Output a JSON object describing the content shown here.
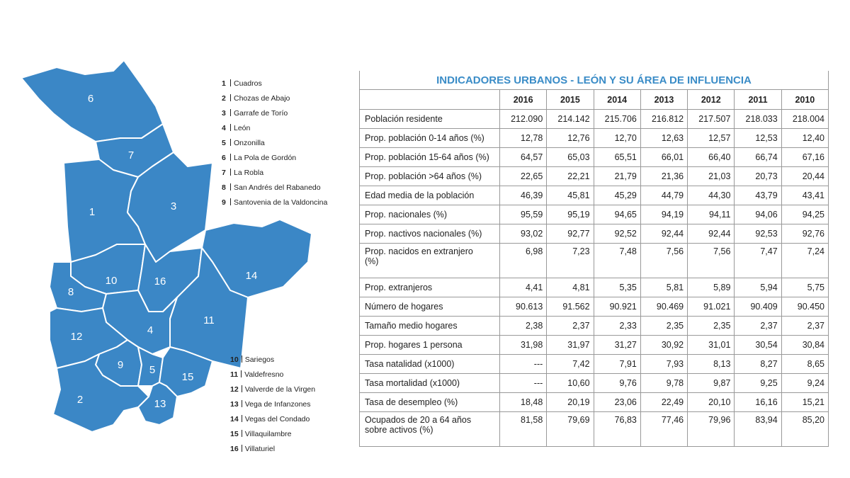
{
  "map": {
    "regions": [
      {
        "id": "1",
        "name": "Cuadros"
      },
      {
        "id": "2",
        "name": "Chozas de Abajo"
      },
      {
        "id": "3",
        "name": "Garrafe de Torío"
      },
      {
        "id": "4",
        "name": "León"
      },
      {
        "id": "5",
        "name": "Onzonilla"
      },
      {
        "id": "6",
        "name": "La Pola de Gordón"
      },
      {
        "id": "7",
        "name": "La Robla"
      },
      {
        "id": "8",
        "name": "San Andrés del Rabanedo"
      },
      {
        "id": "9",
        "name": "Santovenia de la Valdoncina"
      },
      {
        "id": "10",
        "name": "Sariegos"
      },
      {
        "id": "11",
        "name": "Valdefresno"
      },
      {
        "id": "12",
        "name": "Valverde de la Virgen"
      },
      {
        "id": "13",
        "name": "Vega de Infanzones"
      },
      {
        "id": "14",
        "name": "Vegas del Condado"
      },
      {
        "id": "15",
        "name": "Villaquilambre"
      },
      {
        "id": "16",
        "name": "Villaturiel"
      }
    ]
  },
  "table": {
    "title": "INDICADORES URBANOS - LEÓN Y SU ÁREA DE INFLUENCIA",
    "columns": [
      "2016",
      "2015",
      "2014",
      "2013",
      "2012",
      "2011",
      "2010"
    ],
    "rows": [
      {
        "label": "Población residente",
        "cells": [
          "212.090",
          "214.142",
          "215.706",
          "216.812",
          "217.507",
          "218.033",
          "218.004"
        ]
      },
      {
        "label": "Prop. población 0-14 años (%)",
        "cells": [
          "12,78",
          "12,76",
          "12,70",
          "12,63",
          "12,57",
          "12,53",
          "12,40"
        ]
      },
      {
        "label": "Prop. población 15-64 años (%)",
        "cells": [
          "64,57",
          "65,03",
          "65,51",
          "66,01",
          "66,40",
          "66,74",
          "67,16"
        ]
      },
      {
        "label": "Prop. población >64 años (%)",
        "cells": [
          "22,65",
          "22,21",
          "21,79",
          "21,36",
          "21,03",
          "20,73",
          "20,44"
        ]
      },
      {
        "label": "Edad media de la población",
        "cells": [
          "46,39",
          "45,81",
          "45,29",
          "44,79",
          "44,30",
          "43,79",
          "43,41"
        ]
      },
      {
        "label": "Prop. nacionales (%)",
        "cells": [
          "95,59",
          "95,19",
          "94,65",
          "94,19",
          "94,11",
          "94,06",
          "94,25"
        ]
      },
      {
        "label": "Prop. nactivos nacionales (%)",
        "cells": [
          "93,02",
          "92,77",
          "92,52",
          "92,44",
          "92,44",
          "92,53",
          "92,76"
        ]
      },
      {
        "label": "Prop. nacidos en extranjero (%)",
        "cells": [
          "6,98",
          "7,23",
          "7,48",
          "7,56",
          "7,56",
          "7,47",
          "7,24"
        ]
      },
      {
        "label": "Prop. extranjeros",
        "cells": [
          "4,41",
          "4,81",
          "5,35",
          "5,81",
          "5,89",
          "5,94",
          "5,75"
        ]
      },
      {
        "label": "Número de hogares",
        "cells": [
          "90.613",
          "91.562",
          "90.921",
          "90.469",
          "91.021",
          "90.409",
          "90.450"
        ]
      },
      {
        "label": "Tamaño medio hogares",
        "cells": [
          "2,38",
          "2,37",
          "2,33",
          "2,35",
          "2,35",
          "2,37",
          "2,37"
        ]
      },
      {
        "label": "Prop. hogares 1 persona",
        "cells": [
          "31,98",
          "31,97",
          "31,27",
          "30,92",
          "31,01",
          "30,54",
          "30,84"
        ]
      },
      {
        "label": "Tasa natalidad (x1000)",
        "cells": [
          "---",
          "7,42",
          "7,91",
          "7,93",
          "8,13",
          "8,27",
          "8,65"
        ]
      },
      {
        "label": "Tasa mortalidad (x1000)",
        "cells": [
          "---",
          "10,60",
          "9,76",
          "9,78",
          "9,87",
          "9,25",
          "9,24"
        ]
      },
      {
        "label": "Tasa de desempleo (%)",
        "cells": [
          "18,48",
          "20,19",
          "23,06",
          "22,49",
          "20,10",
          "16,16",
          "15,21"
        ]
      },
      {
        "label": "Ocupados de 20 a 64 años sobre activos (%)",
        "cells": [
          "81,58",
          "79,69",
          "76,83",
          "77,46",
          "79,96",
          "83,94",
          "85,20"
        ]
      }
    ]
  }
}
